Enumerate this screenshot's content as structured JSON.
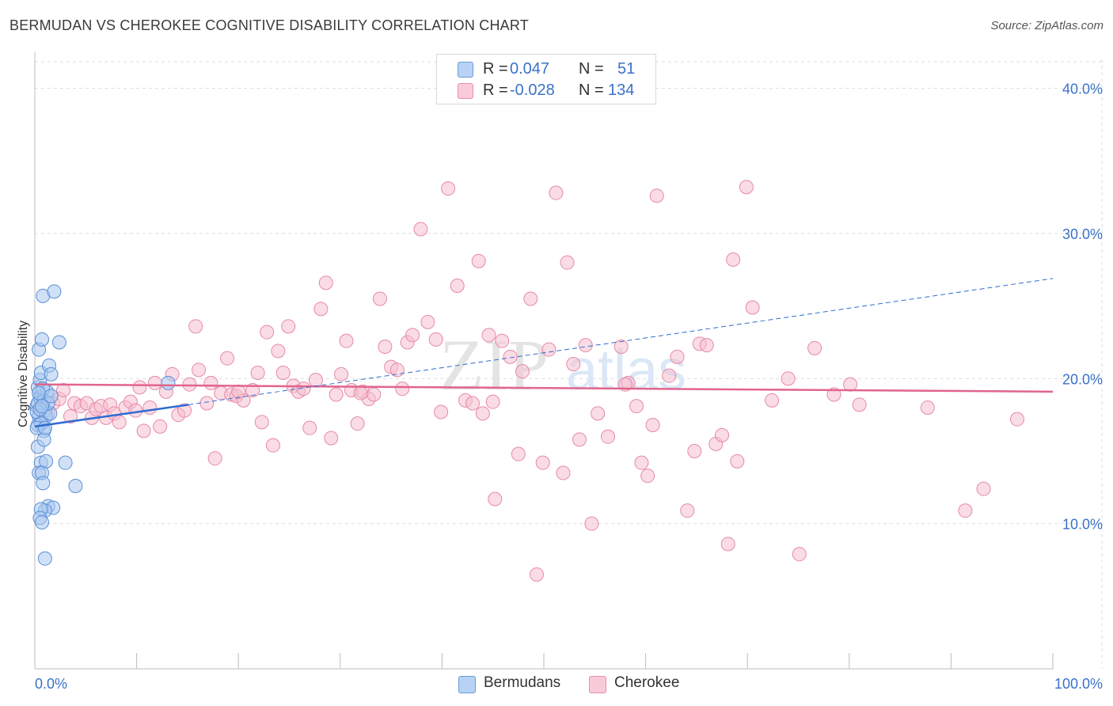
{
  "title": "BERMUDAN VS CHEROKEE COGNITIVE DISABILITY CORRELATION CHART",
  "source": "Source: ZipAtlas.com",
  "watermark": {
    "zip": "ZIP",
    "atlas": "atlas"
  },
  "legend_top": {
    "rows": [
      {
        "r_label": "R =",
        "r_value": "0.047",
        "n_label": "N =",
        "n_value": "51"
      },
      {
        "r_label": "R =",
        "r_value": "-0.028",
        "n_label": "N =",
        "n_value": "134"
      }
    ]
  },
  "legend_bottom": {
    "bermudans": "Bermudans",
    "cherokee": "Cherokee"
  },
  "colors": {
    "bermudans_fill": "#a9c8f0",
    "bermudans_stroke": "#5b8fd6",
    "bermudans_line": "#2f6bd1",
    "cherokee_fill": "#f6bfd0",
    "cherokee_stroke": "#e68aa8",
    "cherokee_line": "#e0658c",
    "tick_label": "#3a72c8",
    "grid": "#dddddd"
  },
  "chart_data": {
    "type": "scatter",
    "title": "BERMUDAN VS CHEROKEE COGNITIVE DISABILITY CORRELATION CHART",
    "xlabel": "",
    "ylabel": "Cognitive Disability",
    "xlim": [
      0,
      100
    ],
    "ylim": [
      0,
      42
    ],
    "x_tick_labels": [
      "0.0%",
      "100.0%"
    ],
    "y_ticks": [
      10,
      20,
      30,
      40
    ],
    "y_tick_labels": [
      "10.0%",
      "20.0%",
      "30.0%",
      "40.0%"
    ],
    "grid": true,
    "legend_position": "top-center",
    "series": [
      {
        "name": "Bermudans",
        "r": 0.047,
        "n": 51,
        "trend": {
          "x_start": 0,
          "y_start": 16.7,
          "x_end_solid": 15.1,
          "y_end_solid": 18.2,
          "x_end_dashed": 100,
          "y_end_dashed": 26.9
        },
        "points": [
          [
            0.3,
            19.4
          ],
          [
            0.5,
            19.9
          ],
          [
            0.6,
            18.6
          ],
          [
            0.2,
            18.1
          ],
          [
            0.8,
            18.0
          ],
          [
            0.4,
            17.4
          ],
          [
            0.7,
            17.0
          ],
          [
            0.3,
            16.8
          ],
          [
            1.0,
            17.8
          ],
          [
            0.5,
            18.7
          ],
          [
            0.6,
            20.4
          ],
          [
            0.9,
            16.4
          ],
          [
            1.2,
            19.1
          ],
          [
            0.4,
            22.0
          ],
          [
            0.7,
            22.7
          ],
          [
            1.4,
            20.9
          ],
          [
            1.6,
            20.3
          ],
          [
            0.8,
            25.7
          ],
          [
            1.9,
            26.0
          ],
          [
            2.4,
            22.5
          ],
          [
            0.3,
            15.3
          ],
          [
            0.9,
            15.8
          ],
          [
            0.6,
            14.2
          ],
          [
            1.1,
            14.3
          ],
          [
            0.4,
            13.5
          ],
          [
            0.7,
            13.5
          ],
          [
            0.8,
            12.8
          ],
          [
            3.0,
            14.2
          ],
          [
            4.0,
            12.6
          ],
          [
            1.3,
            11.2
          ],
          [
            1.8,
            11.1
          ],
          [
            1.0,
            10.9
          ],
          [
            0.6,
            11.0
          ],
          [
            0.5,
            10.4
          ],
          [
            0.7,
            10.1
          ],
          [
            1.0,
            7.6
          ],
          [
            0.2,
            17.7
          ],
          [
            1.1,
            17.4
          ],
          [
            0.3,
            18.3
          ],
          [
            0.9,
            18.5
          ],
          [
            1.5,
            17.6
          ],
          [
            0.6,
            16.9
          ],
          [
            0.2,
            16.6
          ],
          [
            0.8,
            19.3
          ],
          [
            1.3,
            18.3
          ],
          [
            0.4,
            19.0
          ],
          [
            1.6,
            18.8
          ],
          [
            13.1,
            19.7
          ],
          [
            0.5,
            17.9
          ],
          [
            0.7,
            18.1
          ],
          [
            1.0,
            16.6
          ]
        ]
      },
      {
        "name": "Cherokee",
        "r": -0.028,
        "n": 134,
        "trend": {
          "x_start": 0,
          "y_start": 19.6,
          "x_end": 100,
          "y_end": 19.1
        },
        "points": [
          [
            0.6,
            18.1
          ],
          [
            1.3,
            17.6
          ],
          [
            1.8,
            18.3
          ],
          [
            2.4,
            18.6
          ],
          [
            2.8,
            19.2
          ],
          [
            3.5,
            17.4
          ],
          [
            3.9,
            18.3
          ],
          [
            4.5,
            18.1
          ],
          [
            5.1,
            18.3
          ],
          [
            5.6,
            17.3
          ],
          [
            6.0,
            17.9
          ],
          [
            6.5,
            18.1
          ],
          [
            7.0,
            17.3
          ],
          [
            7.4,
            18.2
          ],
          [
            7.8,
            17.6
          ],
          [
            8.3,
            17.0
          ],
          [
            8.9,
            18.0
          ],
          [
            9.4,
            18.4
          ],
          [
            9.9,
            17.8
          ],
          [
            10.3,
            19.4
          ],
          [
            10.7,
            16.4
          ],
          [
            11.3,
            18.0
          ],
          [
            11.8,
            19.7
          ],
          [
            12.3,
            16.7
          ],
          [
            12.9,
            19.1
          ],
          [
            13.5,
            20.3
          ],
          [
            14.1,
            17.5
          ],
          [
            14.7,
            17.8
          ],
          [
            15.2,
            19.6
          ],
          [
            15.8,
            23.6
          ],
          [
            16.1,
            20.6
          ],
          [
            16.9,
            18.3
          ],
          [
            17.3,
            19.7
          ],
          [
            17.7,
            14.5
          ],
          [
            18.3,
            19.0
          ],
          [
            18.9,
            21.4
          ],
          [
            19.3,
            18.9
          ],
          [
            19.8,
            18.8
          ],
          [
            20.5,
            18.5
          ],
          [
            21.4,
            19.2
          ],
          [
            21.9,
            20.4
          ],
          [
            22.3,
            17.0
          ],
          [
            22.8,
            23.2
          ],
          [
            23.4,
            15.4
          ],
          [
            23.9,
            21.9
          ],
          [
            24.4,
            20.4
          ],
          [
            24.9,
            23.6
          ],
          [
            25.4,
            19.5
          ],
          [
            25.9,
            19.1
          ],
          [
            26.4,
            19.3
          ],
          [
            27.0,
            16.6
          ],
          [
            27.6,
            19.9
          ],
          [
            28.1,
            24.8
          ],
          [
            28.6,
            26.6
          ],
          [
            29.1,
            15.9
          ],
          [
            29.6,
            18.9
          ],
          [
            30.1,
            20.3
          ],
          [
            30.6,
            22.6
          ],
          [
            31.1,
            19.2
          ],
          [
            31.7,
            16.9
          ],
          [
            32.2,
            19.1
          ],
          [
            32.8,
            18.6
          ],
          [
            33.3,
            18.9
          ],
          [
            33.9,
            25.5
          ],
          [
            34.4,
            22.2
          ],
          [
            35.0,
            20.8
          ],
          [
            35.6,
            20.6
          ],
          [
            36.1,
            19.3
          ],
          [
            36.6,
            22.5
          ],
          [
            37.1,
            23.0
          ],
          [
            37.9,
            30.3
          ],
          [
            38.6,
            23.9
          ],
          [
            39.4,
            22.7
          ],
          [
            39.9,
            17.7
          ],
          [
            40.6,
            33.1
          ],
          [
            41.5,
            26.4
          ],
          [
            42.3,
            18.5
          ],
          [
            43.0,
            18.3
          ],
          [
            43.6,
            28.1
          ],
          [
            44.0,
            17.6
          ],
          [
            44.6,
            23.0
          ],
          [
            45.2,
            11.7
          ],
          [
            45.9,
            22.6
          ],
          [
            46.7,
            21.5
          ],
          [
            47.5,
            14.8
          ],
          [
            47.9,
            20.5
          ],
          [
            48.7,
            25.5
          ],
          [
            49.3,
            6.5
          ],
          [
            49.9,
            14.2
          ],
          [
            50.5,
            22.0
          ],
          [
            51.2,
            32.8
          ],
          [
            51.9,
            13.5
          ],
          [
            52.3,
            28.0
          ],
          [
            52.9,
            21.0
          ],
          [
            53.5,
            15.8
          ],
          [
            54.1,
            22.3
          ],
          [
            54.7,
            10.0
          ],
          [
            55.3,
            17.6
          ],
          [
            56.3,
            16.0
          ],
          [
            57.6,
            22.2
          ],
          [
            58.3,
            19.7
          ],
          [
            59.1,
            18.1
          ],
          [
            59.6,
            14.2
          ],
          [
            60.2,
            13.3
          ],
          [
            60.7,
            16.8
          ],
          [
            61.1,
            32.6
          ],
          [
            62.3,
            20.2
          ],
          [
            63.1,
            21.5
          ],
          [
            64.1,
            10.9
          ],
          [
            64.8,
            15.0
          ],
          [
            65.3,
            22.4
          ],
          [
            66.0,
            22.3
          ],
          [
            66.9,
            15.5
          ],
          [
            67.5,
            16.1
          ],
          [
            68.1,
            8.6
          ],
          [
            68.6,
            28.2
          ],
          [
            69.0,
            14.3
          ],
          [
            69.9,
            33.2
          ],
          [
            70.5,
            24.9
          ],
          [
            72.4,
            18.5
          ],
          [
            75.1,
            7.9
          ],
          [
            76.6,
            22.1
          ],
          [
            78.5,
            18.9
          ],
          [
            80.1,
            19.6
          ],
          [
            81.0,
            18.2
          ],
          [
            87.7,
            18.0
          ],
          [
            91.4,
            10.9
          ],
          [
            93.2,
            12.4
          ],
          [
            96.5,
            17.2
          ],
          [
            20.0,
            19.1
          ],
          [
            32.0,
            19.0
          ],
          [
            45.0,
            18.4
          ],
          [
            58.0,
            19.6
          ],
          [
            74.0,
            20.0
          ]
        ]
      }
    ]
  }
}
